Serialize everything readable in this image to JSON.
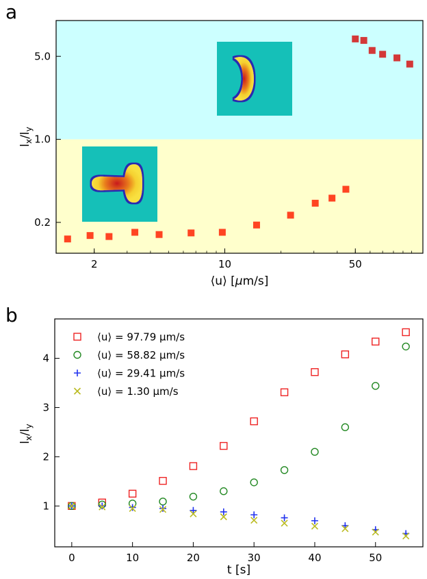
{
  "panels": {
    "a": {
      "label": "a"
    },
    "b": {
      "label": "b"
    }
  },
  "chart_data": [
    {
      "type": "scatter",
      "panel": "a",
      "xlabel": "⟨u⟩ [μm/s]",
      "ylabel": "lx/ly",
      "xscale": "log",
      "yscale": "log",
      "xlim": [
        1.25,
        115
      ],
      "ylim": [
        0.11,
        10
      ],
      "xticks": [
        {
          "value": 2,
          "label": "2"
        },
        {
          "value": 10,
          "label": "10"
        },
        {
          "value": 50,
          "label": "50"
        }
      ],
      "yticks": [
        {
          "value": 0.2,
          "label": "0.2"
        },
        {
          "value": 1.0,
          "label": "1.0"
        },
        {
          "value": 5.0,
          "label": "5.0"
        }
      ],
      "regions": [
        {
          "name": "above",
          "from": 1.0,
          "to": 10,
          "color": "#ccffff"
        },
        {
          "name": "below",
          "from": 0.11,
          "to": 1.0,
          "color": "#ffffcc"
        }
      ],
      "series": [
        {
          "marker": "filled-square",
          "color_low": "#ff4422",
          "color_high": "#d33838",
          "points": [
            [
              1.44,
              0.145
            ],
            [
              1.9,
              0.155
            ],
            [
              2.4,
              0.152
            ],
            [
              3.3,
              0.165
            ],
            [
              4.45,
              0.158
            ],
            [
              6.6,
              0.163
            ],
            [
              9.7,
              0.165
            ],
            [
              14.8,
              0.19
            ],
            [
              22.5,
              0.23
            ],
            [
              30.5,
              0.29
            ],
            [
              37.5,
              0.32
            ],
            [
              44.5,
              0.38
            ],
            [
              50,
              7.0
            ],
            [
              55.5,
              6.8
            ],
            [
              61.5,
              5.6
            ],
            [
              70,
              5.2
            ],
            [
              83.5,
              4.85
            ],
            [
              97.8,
              4.3
            ]
          ]
        }
      ],
      "insets": [
        {
          "name": "t-shape-snapshot",
          "background": "#15c0b8"
        },
        {
          "name": "crescent-snapshot",
          "background": "#15c0b8"
        }
      ]
    },
    {
      "type": "scatter",
      "panel": "b",
      "xlabel": "t [s]",
      "ylabel": "lx/ly",
      "xlim": [
        -2.8,
        57.8
      ],
      "ylim": [
        0.17,
        4.8
      ],
      "xticks": [
        {
          "value": 0,
          "label": "0"
        },
        {
          "value": 10,
          "label": "10"
        },
        {
          "value": 20,
          "label": "20"
        },
        {
          "value": 30,
          "label": "30"
        },
        {
          "value": 40,
          "label": "40"
        },
        {
          "value": 50,
          "label": "50"
        }
      ],
      "yticks": [
        {
          "value": 1,
          "label": "1"
        },
        {
          "value": 2,
          "label": "2"
        },
        {
          "value": 3,
          "label": "3"
        },
        {
          "value": 4,
          "label": "4"
        }
      ],
      "legend_position": "top-left",
      "x": [
        0,
        5,
        10,
        15,
        20,
        25,
        30,
        35,
        40,
        45,
        50,
        55
      ],
      "series": [
        {
          "name": "⟨u⟩ = 97.79 μm/s",
          "marker": "open-square",
          "color": "#ee2222",
          "values": [
            1.0,
            1.07,
            1.25,
            1.51,
            1.81,
            2.22,
            2.72,
            3.31,
            3.72,
            4.08,
            4.34,
            4.53
          ]
        },
        {
          "name": "⟨u⟩ = 58.82 μm/s",
          "marker": "open-circle",
          "color": "#228822",
          "values": [
            1.0,
            1.03,
            1.05,
            1.09,
            1.19,
            1.3,
            1.48,
            1.73,
            2.1,
            2.6,
            3.44,
            4.24
          ]
        },
        {
          "name": "⟨u⟩ = 29.41 μm/s",
          "marker": "plus",
          "color": "#2233ee",
          "values": [
            1.0,
            1.0,
            0.97,
            0.95,
            0.91,
            0.88,
            0.82,
            0.76,
            0.7,
            0.6,
            0.52,
            0.44
          ]
        },
        {
          "name": "⟨u⟩ = 1.30 μm/s",
          "marker": "x",
          "color": "#bbbb22",
          "values": [
            1.0,
            0.98,
            0.95,
            0.93,
            0.84,
            0.78,
            0.71,
            0.65,
            0.59,
            0.54,
            0.47,
            0.39
          ]
        }
      ]
    }
  ]
}
